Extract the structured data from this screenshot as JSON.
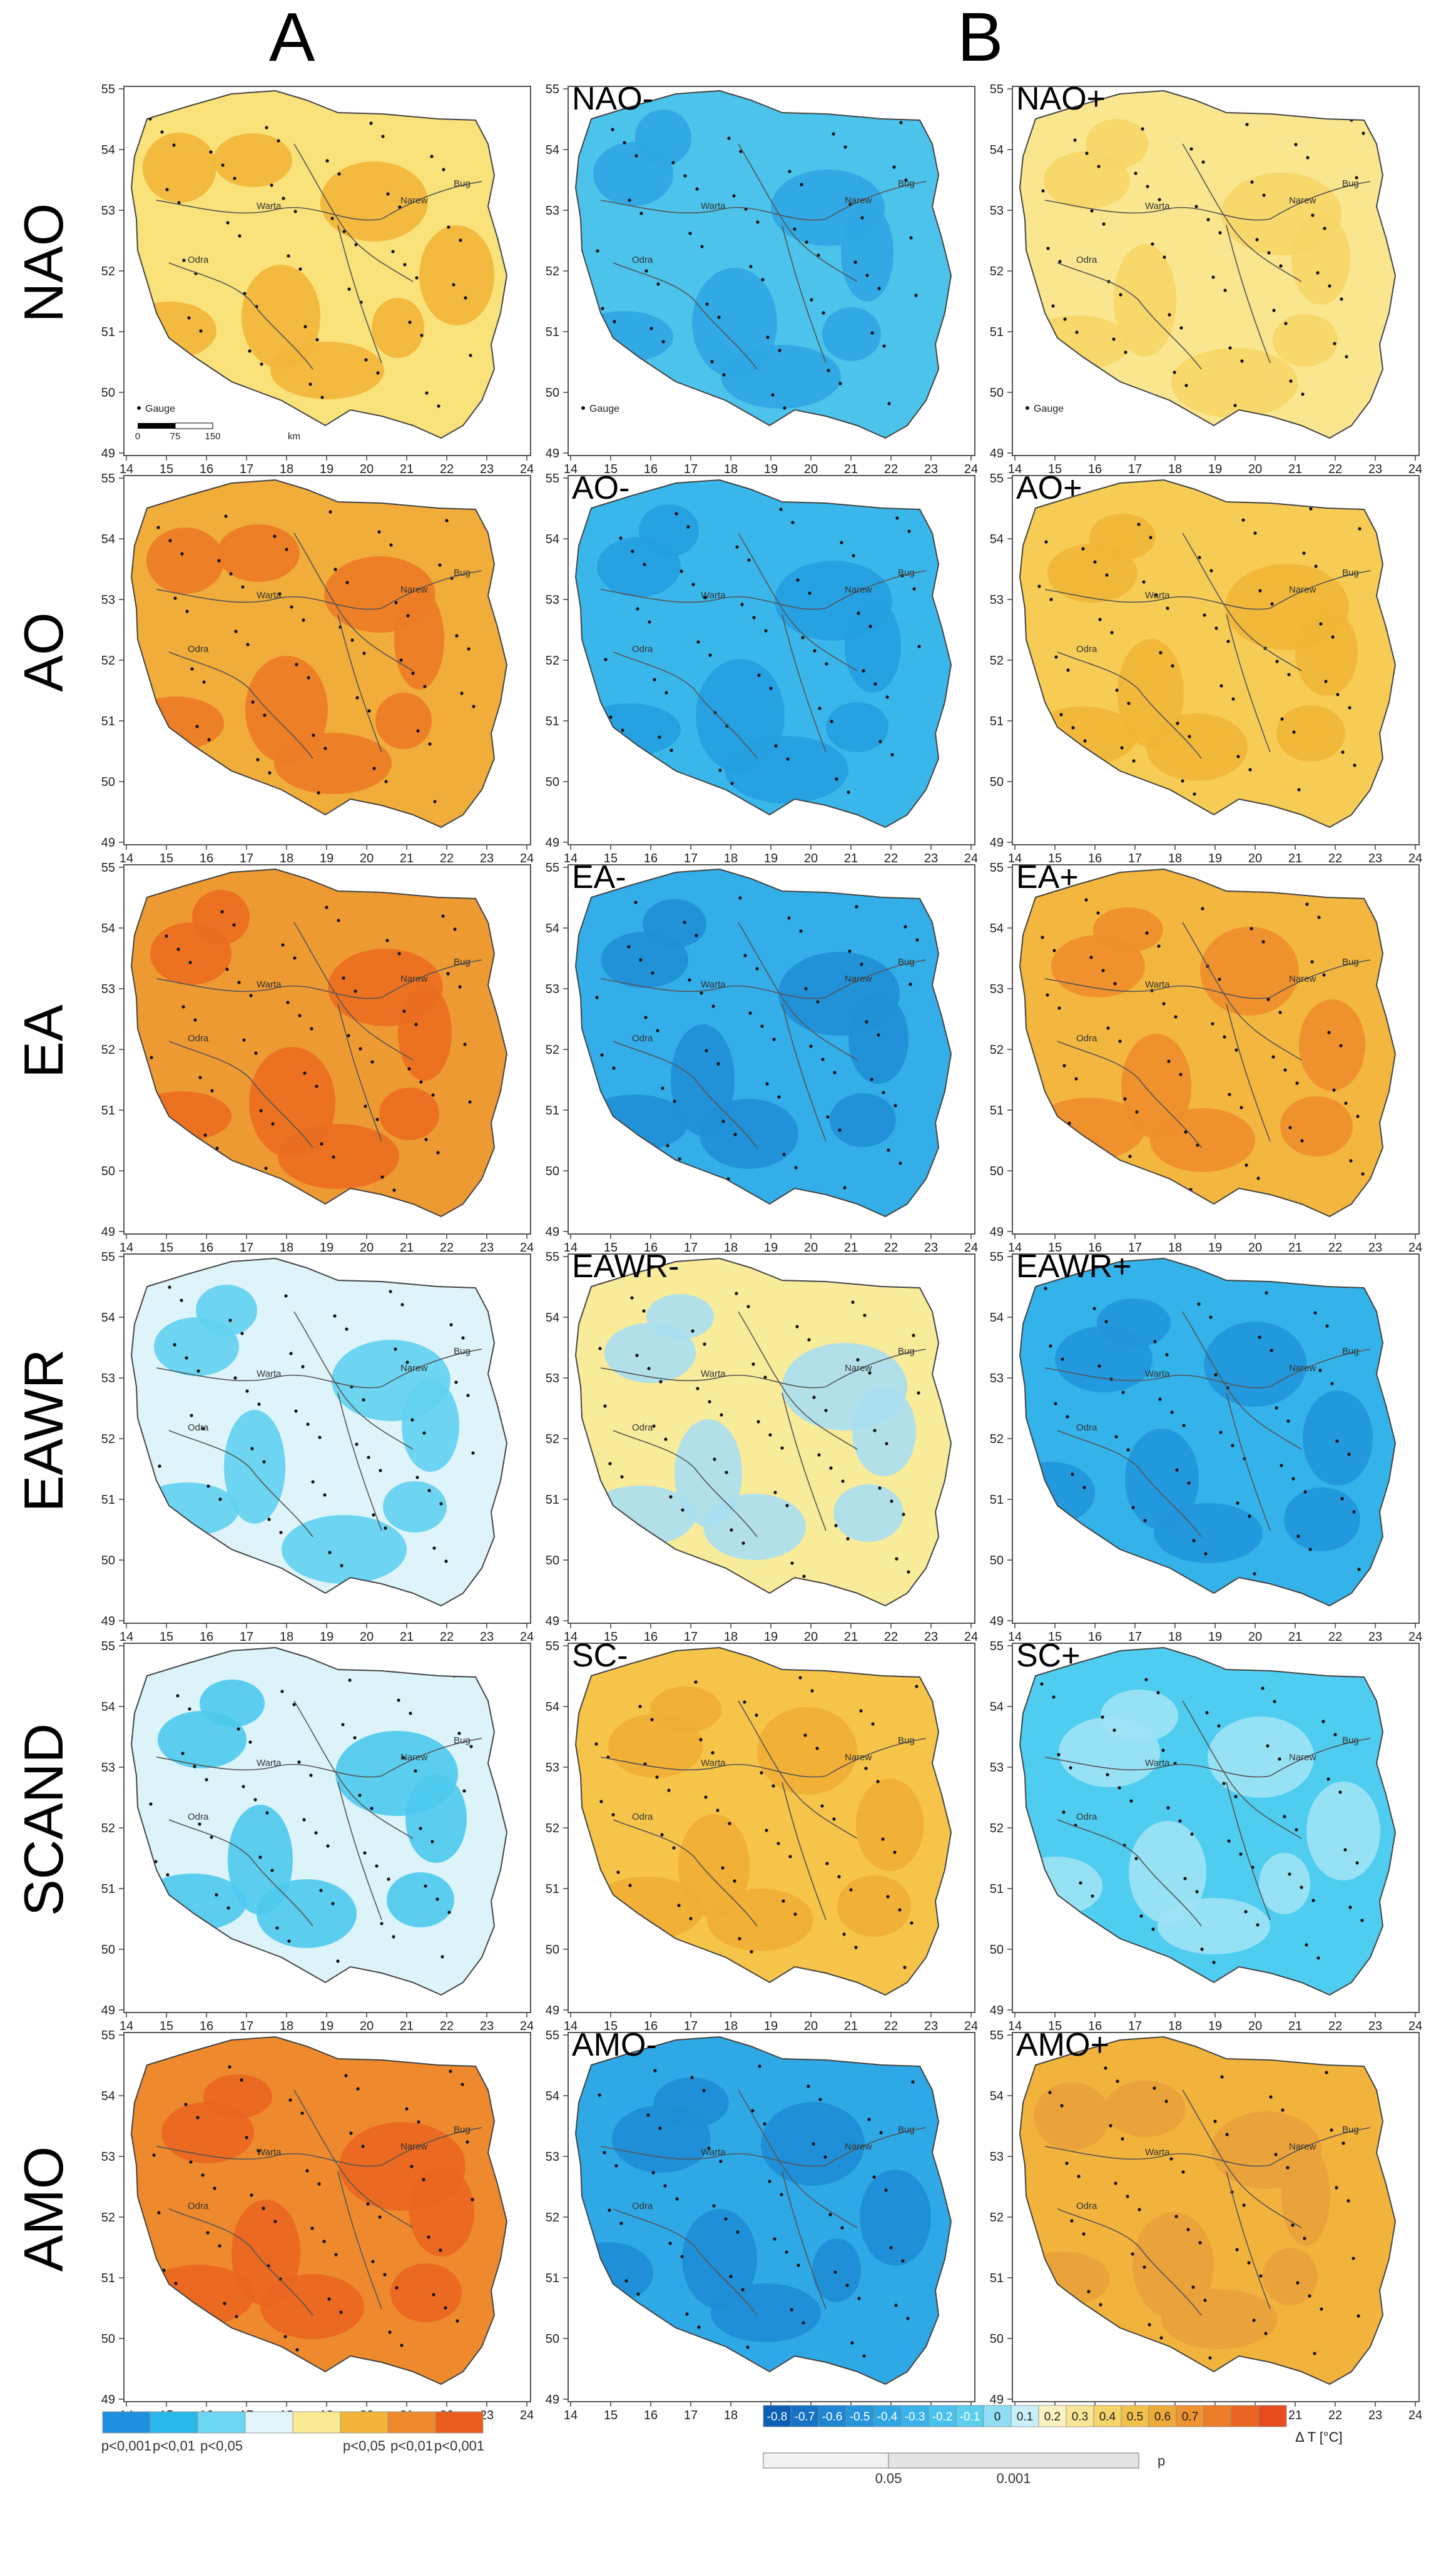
{
  "columns": {
    "a": "A",
    "b": "B"
  },
  "rows": [
    {
      "key": "nao",
      "label": "NAO",
      "neg": "NAO-",
      "pos": "NAO+",
      "a_base": "#f9e27a",
      "a_patch": "#f2b638",
      "neg_base": "#4bc3ea",
      "neg_patch": "#2fa6e3",
      "pos_base": "#f9e68e",
      "pos_patch": "#f7d567"
    },
    {
      "key": "ao",
      "label": "AO",
      "neg": "AO-",
      "pos": "AO+",
      "a_base": "#f0ad3a",
      "a_patch": "#ec7b26",
      "neg_base": "#3ab7ea",
      "neg_patch": "#259ee0",
      "pos_base": "#f6cc55",
      "pos_patch": "#f2b637"
    },
    {
      "key": "ea",
      "label": "EA",
      "neg": "EA-",
      "pos": "EA+",
      "a_base": "#ee9a33",
      "a_patch": "#eb6e20",
      "neg_base": "#33aee8",
      "neg_patch": "#1f8fd6",
      "pos_base": "#f3b63f",
      "pos_patch": "#ee8e2c"
    },
    {
      "key": "eawr",
      "label": "EAWR",
      "neg": "EAWR-",
      "pos": "EAWR+",
      "a_base": "#dff4fa",
      "a_patch": "#61d2ef",
      "neg_base": "#f8eb9a",
      "neg_patch": "#a9dff2",
      "pos_base": "#33b3ea",
      "pos_patch": "#2196dc"
    },
    {
      "key": "scand",
      "label": "SCAND",
      "neg": "SC-",
      "pos": "SC+",
      "a_base": "#dcf3fa",
      "a_patch": "#4ccaee",
      "neg_base": "#f5c449",
      "neg_patch": "#f1ae34",
      "pos_base": "#4fcdf0",
      "pos_patch": "#9fe3f5"
    },
    {
      "key": "amo",
      "label": "AMO",
      "neg": "AMO-",
      "pos": "AMO+",
      "a_base": "#ee8a2d",
      "a_patch": "#ea6520",
      "neg_base": "#2fa9e6",
      "neg_patch": "#1e8dd5",
      "pos_base": "#f2b33c",
      "pos_patch": "#e9a13a"
    }
  ],
  "map": {
    "x_ticks": [
      "14",
      "15",
      "16",
      "17",
      "18",
      "19",
      "20",
      "21",
      "22",
      "23",
      "24"
    ],
    "y_ticks": [
      "55",
      "54",
      "53",
      "52",
      "51",
      "50",
      "49"
    ],
    "river_labels": [
      "Warta",
      "Narew",
      "Bug",
      "Odra"
    ],
    "gauge_label": "Gauge",
    "scale_labels": [
      "0",
      "75",
      "150",
      "km"
    ]
  },
  "legend_a": {
    "colors": [
      "#1e90e0",
      "#29b6ea",
      "#6dd6f2",
      "#e2f5fb",
      "#f9ea93",
      "#f3b43a",
      "#ee8a2b",
      "#ea5d1d"
    ],
    "labels": [
      "p<0,001",
      "p<0,01",
      "p<0,05",
      "",
      "",
      "p<0,05",
      "p<0,01",
      "p<0,001"
    ]
  },
  "legend_b": {
    "colors": [
      "#0b5fb3",
      "#1572c4",
      "#1e85d3",
      "#2695dc",
      "#2ea4e3",
      "#38b2e8",
      "#48c1ee",
      "#5ccfef",
      "#8fdef4",
      "#c9f0fa",
      "#fbf3c0",
      "#f9e593",
      "#f6d46a",
      "#f3c04c",
      "#f0aa3a",
      "#ee9330",
      "#ec7c28",
      "#e96422",
      "#e64b1e"
    ],
    "labels": [
      "-0.8",
      "-0.7",
      "-0.6",
      "-0.5",
      "-0.4",
      "-0.3",
      "-0.2",
      "-0.1",
      "0",
      "0.1",
      "0.2",
      "0.3",
      "0.4",
      "0.5",
      "0.6",
      "0.7"
    ],
    "unit": "Δ T [°C]",
    "p_label": "p",
    "p_ticks": [
      "0.05",
      "0.001"
    ]
  }
}
